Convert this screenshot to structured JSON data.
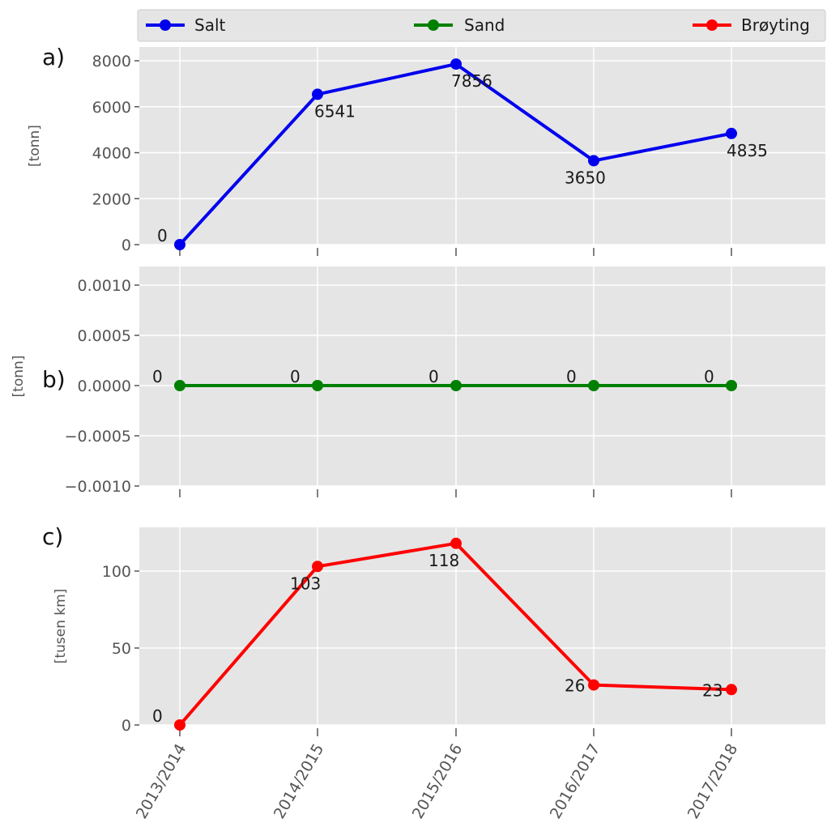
{
  "legend": [
    {
      "label": "Salt",
      "color": "#0000ee"
    },
    {
      "label": "Sand",
      "color": "#008000"
    },
    {
      "label": "Brøyting",
      "color": "#ff0000"
    }
  ],
  "chart_data": [
    {
      "type": "line",
      "panel_label": "a)",
      "series_name": "Salt",
      "color": "#0000ee",
      "categories": [
        "2013/2014",
        "2014/2015",
        "2015/2016",
        "2016/2017",
        "2017/2018"
      ],
      "values": [
        0,
        6541,
        7856,
        3650,
        4835
      ],
      "data_labels": [
        "0",
        "6541",
        "7856",
        "3650",
        "4835"
      ],
      "ylabel": "[tonn]",
      "ylim": [
        0,
        8600
      ],
      "yticks": [
        0,
        2000,
        4000,
        6000,
        8000
      ],
      "ytick_labels": [
        "0",
        "2000",
        "4000",
        "6000",
        "8000"
      ],
      "grid": true
    },
    {
      "type": "line",
      "panel_label": "b)",
      "series_name": "Sand",
      "color": "#008000",
      "categories": [
        "2013/2014",
        "2014/2015",
        "2015/2016",
        "2016/2017",
        "2017/2018"
      ],
      "values": [
        0,
        0,
        0,
        0,
        0
      ],
      "data_labels": [
        "0",
        "0",
        "0",
        "0",
        "0"
      ],
      "ylabel": "[tonn]",
      "ylim": [
        -0.001,
        0.001
      ],
      "yticks": [
        -0.001,
        -0.0005,
        0,
        0.0005,
        0.001
      ],
      "ytick_labels": [
        "−0.0010",
        "−0.0005",
        "0.0000",
        "0.0005",
        "0.0010"
      ],
      "grid": true
    },
    {
      "type": "line",
      "panel_label": "c)",
      "series_name": "Brøyting",
      "color": "#ff0000",
      "categories": [
        "2013/2014",
        "2014/2015",
        "2015/2016",
        "2016/2017",
        "2017/2018"
      ],
      "values": [
        0,
        103,
        118,
        26,
        23
      ],
      "data_labels": [
        "0",
        "103",
        "118",
        "26",
        "23"
      ],
      "ylabel": "[tusen km]",
      "ylim": [
        0,
        125
      ],
      "yticks": [
        0,
        50,
        100
      ],
      "ytick_labels": [
        "0",
        "50",
        "100"
      ],
      "grid": true
    }
  ]
}
